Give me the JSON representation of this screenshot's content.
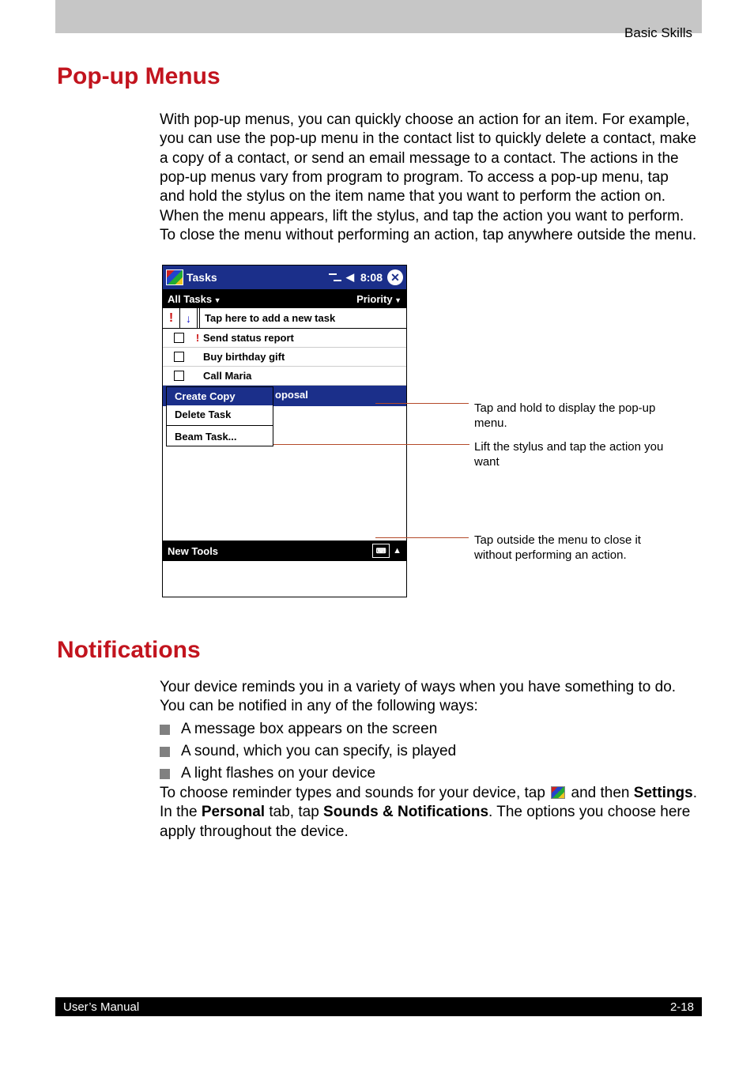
{
  "header_text": "Basic Skills",
  "h_popup": "Pop-up Menus",
  "h_notif": "Notifications",
  "para_popup": "With pop-up menus, you can quickly choose an action for an item. For example, you can use the pop-up menu in the contact list to quickly delete a contact, make a copy of a contact, or send an email message to a contact. The actions in the pop-up menus vary from program to program. To access a pop-up menu, tap and hold the stylus on the item name that you want to perform the action on. When the menu appears, lift the stylus, and tap the action you want to perform. To close the menu without performing an action, tap anywhere outside the menu.",
  "para_notif_intro": "Your device reminds you in a variety of ways when you have something to do. You can be notified in any of the following ways:",
  "bullets": [
    "A message box appears on the screen",
    "A sound, which you can specify, is played",
    "A light flashes on your device"
  ],
  "para_notif_outro_1": "To choose reminder types and sounds for your device, tap ",
  "para_notif_outro_2": " and then ",
  "para_notif_outro_settings": "Settings",
  "para_notif_outro_3": ". In the  ",
  "para_notif_outro_personal": "Personal",
  "para_notif_outro_4": "  tab, tap  ",
  "para_notif_outro_sounds": "Sounds & Notifications",
  "para_notif_outro_5": ". The options you choose here apply throughout the device.",
  "pda": {
    "title": "Tasks",
    "time": "8:08",
    "filter_left": "All Tasks",
    "filter_right": "Priority",
    "add_placeholder": "Tap here to add a new task",
    "tasks": [
      {
        "priority": true,
        "label": "Send status report"
      },
      {
        "priority": false,
        "label": "Buy birthday gift"
      },
      {
        "priority": false,
        "label": "Call Maria"
      }
    ],
    "selected_fragment": "oposal",
    "menu": {
      "create": "Create Copy",
      "delete": "Delete Task",
      "beam": "Beam Task..."
    },
    "bottom_left": "New  Tools"
  },
  "callouts": {
    "c1": "Tap and hold to display the pop-up menu.",
    "c2": "Lift the stylus and tap the action you want",
    "c3": "Tap outside the menu to close it without performing an action."
  },
  "footer_left": "User’s Manual",
  "footer_right": "2-18",
  "colors": {
    "heading": "#c2141e",
    "gray_band": "#c6c6c6",
    "titlebar": "#1b2f8a",
    "callout_line": "#b44a2a",
    "black": "#000000",
    "white": "#ffffff"
  }
}
